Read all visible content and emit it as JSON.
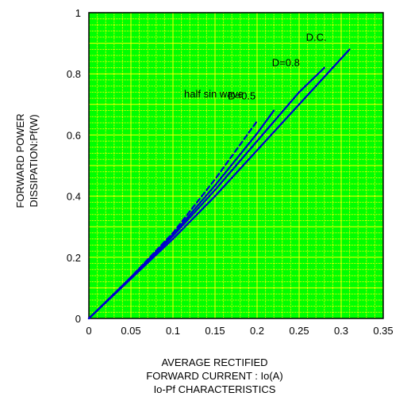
{
  "chart_data": {
    "type": "line",
    "xlabel": [
      "AVERAGE RECTIFIED",
      "FORWARD CURRENT : Io(A)",
      "Io-Pf CHARACTERISTICS"
    ],
    "ylabel": [
      "FORWARD POWER",
      "DISSIPATION:Pf(W)"
    ],
    "xlim": [
      0,
      0.35
    ],
    "ylim": [
      0,
      1
    ],
    "x_ticks": [
      0,
      0.05,
      0.1,
      0.15,
      0.2,
      0.25,
      0.3,
      0.35
    ],
    "x_tick_labels": [
      "0",
      "0.05",
      "0.1",
      "0.15",
      "0.2",
      "0.25",
      "0.3",
      "0.35"
    ],
    "y_ticks": [
      0,
      0.2,
      0.4,
      0.6,
      0.8,
      1
    ],
    "y_tick_labels": [
      "0",
      "0.2",
      "0.4",
      "0.6",
      "0.8",
      "1"
    ],
    "grid": true,
    "series": [
      {
        "name": "half sin wave",
        "dashed": true,
        "x": [
          0,
          0.05,
          0.1,
          0.15,
          0.2
        ],
        "y": [
          0,
          0.135,
          0.28,
          0.455,
          0.645
        ]
      },
      {
        "name": "D=0.5",
        "dashed": false,
        "x": [
          0,
          0.05,
          0.1,
          0.15,
          0.2,
          0.22
        ],
        "y": [
          0,
          0.135,
          0.275,
          0.435,
          0.605,
          0.68
        ]
      },
      {
        "name": "D=0.8",
        "dashed": false,
        "x": [
          0,
          0.05,
          0.1,
          0.15,
          0.2,
          0.25,
          0.28
        ],
        "y": [
          0,
          0.13,
          0.27,
          0.42,
          0.58,
          0.74,
          0.82
        ]
      },
      {
        "name": "D.C.",
        "dashed": false,
        "x": [
          0,
          0.05,
          0.1,
          0.15,
          0.2,
          0.25,
          0.3,
          0.31
        ],
        "y": [
          0,
          0.13,
          0.26,
          0.4,
          0.55,
          0.7,
          0.85,
          0.88
        ]
      }
    ],
    "colors": {
      "plot_bg": "#00FF00",
      "grid_minor": "#FFFF00",
      "grid_major": "#C8F0A0",
      "line": "#0000CC",
      "axis": "#000000"
    }
  }
}
